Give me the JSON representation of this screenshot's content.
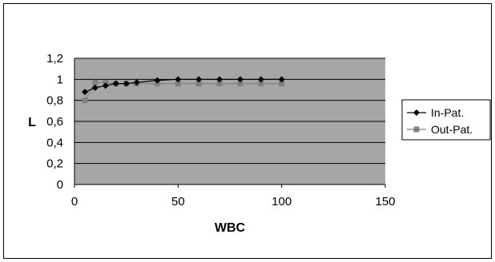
{
  "chart_data": {
    "type": "line",
    "xlabel": "WBC",
    "ylabel": "L",
    "xlim": [
      0,
      150
    ],
    "ylim": [
      0,
      1.2
    ],
    "x_ticks": [
      "0",
      "50",
      "100",
      "150"
    ],
    "y_ticks": [
      "0",
      "0,2",
      "0,4",
      "0,6",
      "0,8",
      "1",
      "1,2"
    ],
    "grid": "horizontal",
    "plot_background": "#a6a6a6",
    "legend_position": "right",
    "series": [
      {
        "name": "In-Pat.",
        "marker": "diamond",
        "color": "#000000",
        "x": [
          5,
          10,
          15,
          20,
          25,
          30,
          40,
          50,
          60,
          70,
          80,
          90,
          100
        ],
        "y": [
          0.88,
          0.92,
          0.94,
          0.96,
          0.96,
          0.97,
          0.99,
          1.0,
          1.0,
          1.0,
          1.0,
          1.0,
          1.0
        ]
      },
      {
        "name": "Out-Pat.",
        "marker": "square",
        "color": "#808080",
        "x": [
          5,
          10,
          15,
          20,
          25,
          30,
          40,
          50,
          60,
          70,
          80,
          90,
          100
        ],
        "y": [
          0.8,
          0.97,
          0.97,
          0.96,
          0.96,
          0.96,
          0.96,
          0.96,
          0.96,
          0.96,
          0.96,
          0.96,
          0.96
        ]
      }
    ]
  }
}
